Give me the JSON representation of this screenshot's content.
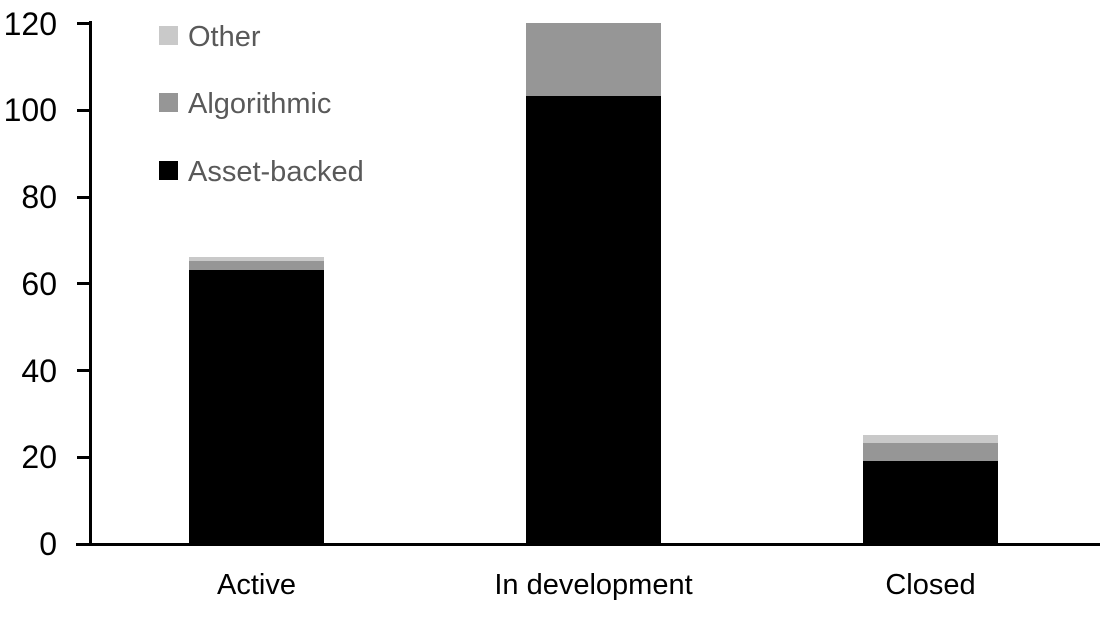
{
  "chart_data": {
    "type": "bar",
    "stacked": true,
    "title": "",
    "xlabel": "",
    "ylabel": "",
    "categories": [
      "Active",
      "In development",
      "Closed"
    ],
    "series": [
      {
        "name": "Asset-backed",
        "color": "#000000",
        "values": [
          63,
          103,
          19
        ]
      },
      {
        "name": "Algorithmic",
        "color": "#969696",
        "values": [
          2,
          17,
          4
        ]
      },
      {
        "name": "Other",
        "color": "#c9c9c9",
        "values": [
          1,
          0,
          2
        ]
      }
    ],
    "totals": [
      66,
      120,
      25
    ],
    "yticks": [
      0,
      20,
      40,
      60,
      80,
      100,
      120
    ],
    "ylim": [
      0,
      120
    ],
    "grid": false,
    "legend": {
      "position": "top-left",
      "order": [
        "Other",
        "Algorithmic",
        "Asset-backed"
      ],
      "text_color": "#595959"
    },
    "axis_color": "#000000",
    "background": "#ffffff"
  }
}
